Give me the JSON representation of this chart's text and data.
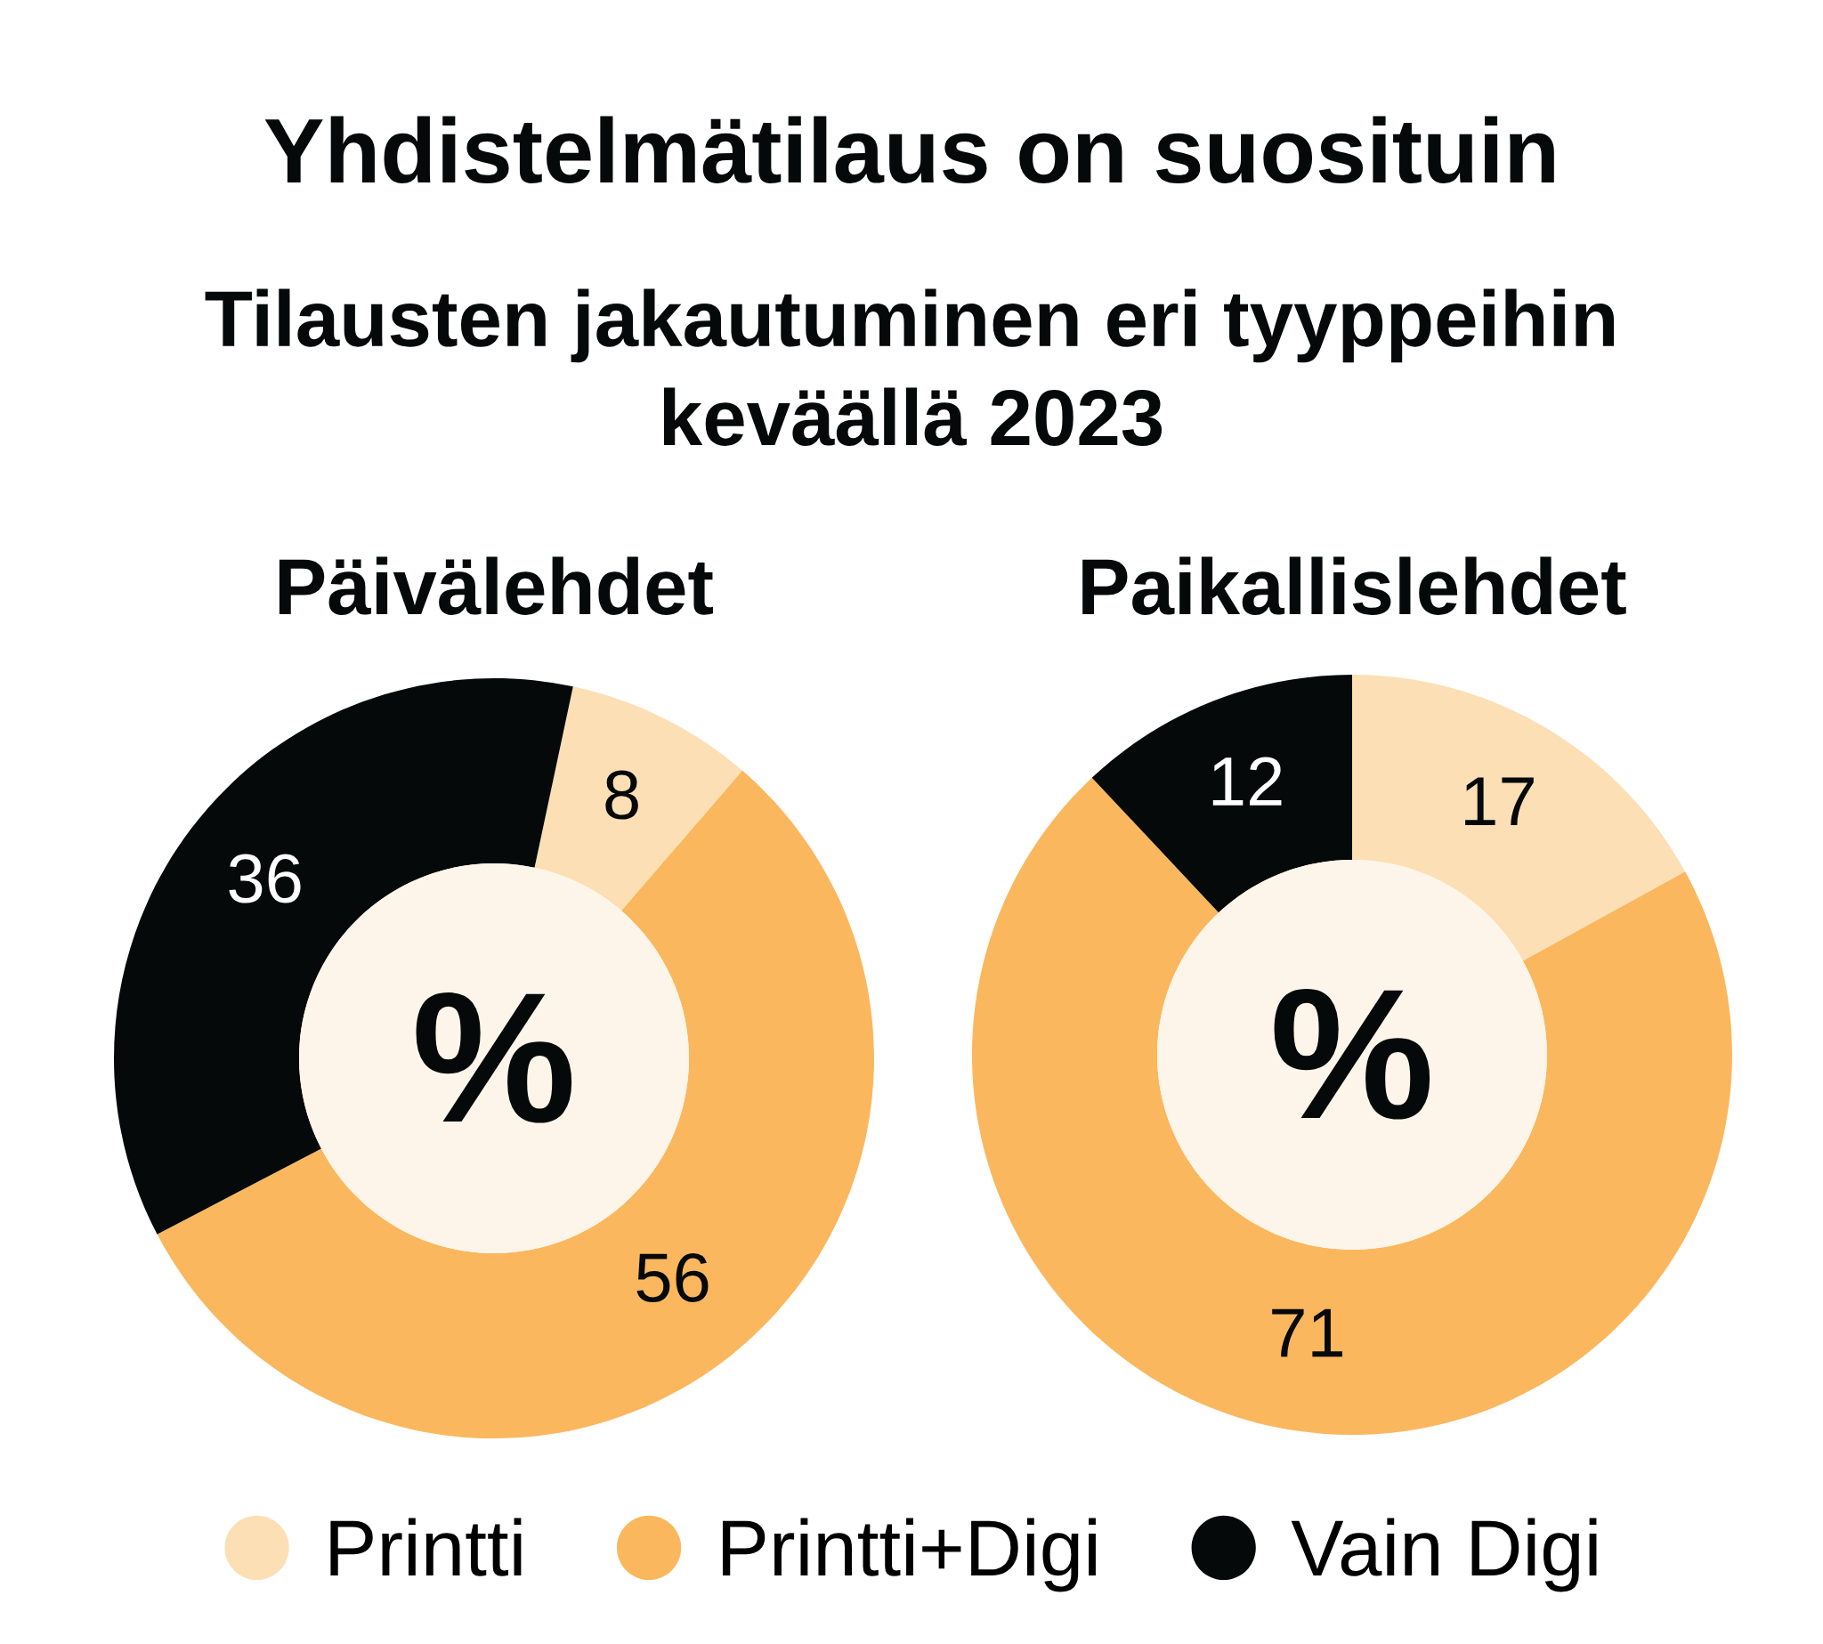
{
  "chart_data": {
    "type": "donut",
    "title": "Yhdistelmätilaus on suosituin",
    "subtitle": "Tilausten jakautuminen eri tyyppeihin\nkeväällä 2023",
    "categories": [
      "Printti",
      "Printti+Digi",
      "Vain Digi"
    ],
    "colors": [
      "#fddfb5",
      "#fbb75e",
      "#050909"
    ],
    "series": [
      {
        "name": "Päivälehdet",
        "values": [
          8,
          56,
          36
        ]
      },
      {
        "name": "Paikallislehdet",
        "values": [
          17,
          71,
          12
        ]
      }
    ],
    "data_labels": true,
    "annotations": [
      "%",
      "%"
    ],
    "legend": "bottom"
  }
}
